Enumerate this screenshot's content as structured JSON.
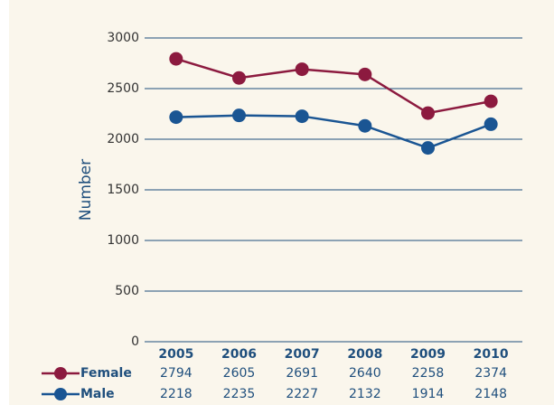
{
  "chart_data": {
    "type": "line",
    "y_label": "Number",
    "categories": [
      "2005",
      "2006",
      "2007",
      "2008",
      "2009",
      "2010"
    ],
    "series": [
      {
        "name": "Female",
        "color": "#8c1a3f",
        "values": [
          2794,
          2605,
          2691,
          2640,
          2258,
          2374
        ]
      },
      {
        "name": "Male",
        "color": "#1a5593",
        "values": [
          2218,
          2235,
          2227,
          2132,
          1914,
          2148
        ]
      }
    ],
    "ylim": [
      0,
      3000
    ],
    "yticks": [
      0,
      500,
      1000,
      1500,
      2000,
      2500,
      3000
    ],
    "grid": true
  }
}
